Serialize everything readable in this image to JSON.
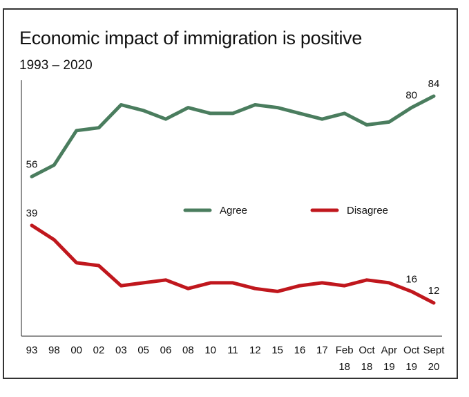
{
  "title": "Economic impact of immigration is positive",
  "subtitle": "1993 – 2020",
  "chart_data": {
    "type": "line",
    "title": "Economic impact of immigration is positive",
    "subtitle": "1993 – 2020",
    "xlabel": "",
    "ylabel": "",
    "ylim": [
      0,
      90
    ],
    "grid": false,
    "legend": "center",
    "categories": [
      [
        "93"
      ],
      [
        "98"
      ],
      [
        "00"
      ],
      [
        "02"
      ],
      [
        "03"
      ],
      [
        "05"
      ],
      [
        "06"
      ],
      [
        "08"
      ],
      [
        "10"
      ],
      [
        "11"
      ],
      [
        "12"
      ],
      [
        "15"
      ],
      [
        "16"
      ],
      [
        "17"
      ],
      [
        "Feb",
        "18"
      ],
      [
        "Oct",
        "18"
      ],
      [
        "Apr",
        "19"
      ],
      [
        "Oct",
        "19"
      ],
      [
        "Sept",
        "20"
      ]
    ],
    "series": [
      {
        "name": "Agree",
        "color": "#4a7d5e",
        "values": [
          56,
          60,
          72,
          73,
          81,
          79,
          76,
          80,
          78,
          78,
          81,
          80,
          78,
          76,
          78,
          74,
          75,
          80,
          84
        ],
        "labels": {
          "0": "56",
          "17": "80",
          "18": "84"
        }
      },
      {
        "name": "Disagree",
        "color": "#c0171d",
        "values": [
          39,
          34,
          26,
          25,
          18,
          19,
          20,
          17,
          19,
          19,
          17,
          16,
          18,
          19,
          18,
          20,
          19,
          16,
          12
        ],
        "labels": {
          "0": "39",
          "17": "16",
          "18": "12"
        }
      }
    ]
  }
}
